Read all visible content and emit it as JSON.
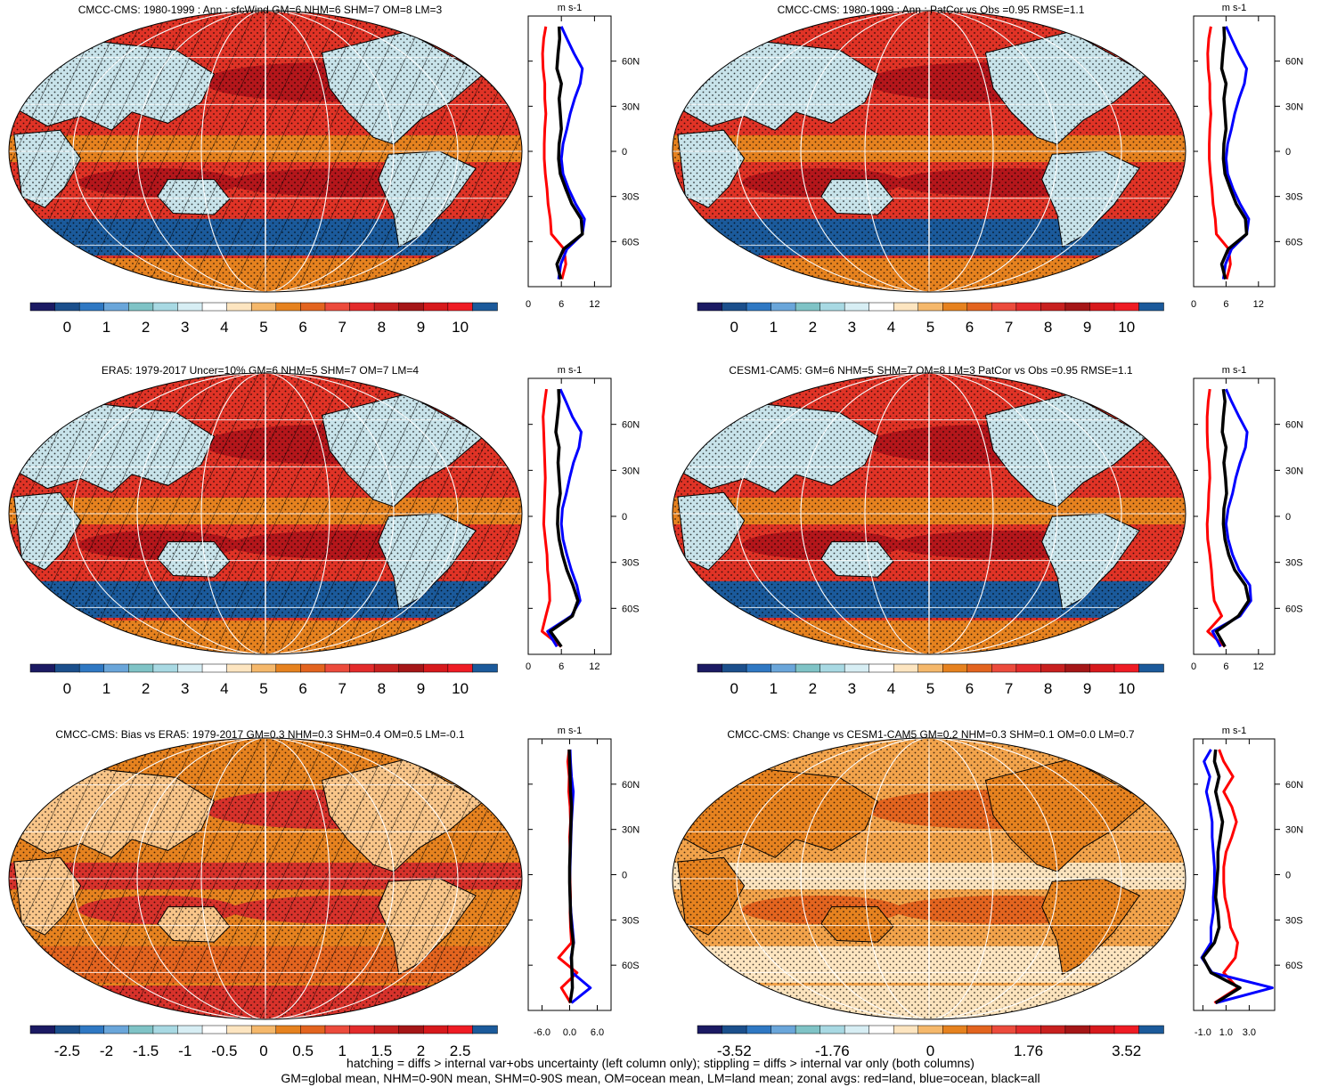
{
  "panels": [
    {
      "title": "CMCC-CMS: 1980-1999 : Ann : sfcWind GM=6 NHM=6 SHM=7 OM=8 LM=3",
      "map_kind": "climatology",
      "hatching": true,
      "stippling": true,
      "colorbar_labels": [
        "0",
        "1",
        "2",
        "3",
        "4",
        "5",
        "6",
        "7",
        "8",
        "9",
        "10"
      ],
      "zonal_xticks": [
        "0",
        "6",
        "12"
      ],
      "zonal_xrange": [
        0,
        15
      ],
      "units": "m s-1",
      "zonal": {
        "lat": [
          -85,
          -75,
          -65,
          -55,
          -45,
          -35,
          -25,
          -15,
          -5,
          5,
          15,
          25,
          35,
          45,
          55,
          65,
          75,
          83
        ],
        "land": [
          6.1,
          6.8,
          6.5,
          4.2,
          4.0,
          3.6,
          3.4,
          3.1,
          2.9,
          2.9,
          3.0,
          3.2,
          3.0,
          3.0,
          2.7,
          2.6,
          2.8,
          3.2
        ],
        "ocean": [
          5.5,
          5.9,
          7.0,
          9.8,
          10.2,
          8.6,
          7.3,
          6.3,
          6.0,
          6.3,
          7.0,
          7.6,
          8.4,
          9.4,
          9.8,
          8.3,
          7.0,
          6.0
        ],
        "all": [
          5.9,
          5.2,
          6.4,
          9.8,
          9.6,
          7.9,
          6.8,
          5.8,
          5.5,
          5.6,
          6.0,
          5.8,
          5.6,
          6.0,
          5.2,
          5.4,
          5.7,
          5.6
        ]
      }
    },
    {
      "title": "CMCC-CMS: 1980-1999 : Ann : PatCor vs Obs =0.95 RMSE=1.1",
      "map_kind": "climatology",
      "hatching": false,
      "stippling": true,
      "colorbar_labels": [
        "0",
        "1",
        "2",
        "3",
        "4",
        "5",
        "6",
        "7",
        "8",
        "9",
        "10"
      ],
      "zonal_xticks": [
        "0",
        "6",
        "12"
      ],
      "zonal_xrange": [
        0,
        15
      ],
      "units": "m s-1",
      "zonal": {
        "lat": [
          -85,
          -75,
          -65,
          -55,
          -45,
          -35,
          -25,
          -15,
          -5,
          5,
          15,
          25,
          35,
          45,
          55,
          65,
          75,
          83
        ],
        "land": [
          6.1,
          6.8,
          6.5,
          4.2,
          4.0,
          3.6,
          3.4,
          3.1,
          2.9,
          2.9,
          3.0,
          3.2,
          3.0,
          3.0,
          2.7,
          2.6,
          2.8,
          3.2
        ],
        "ocean": [
          5.5,
          5.9,
          7.0,
          9.8,
          10.2,
          8.6,
          7.3,
          6.3,
          6.0,
          6.3,
          7.0,
          7.6,
          8.4,
          9.4,
          9.8,
          8.3,
          7.0,
          6.0
        ],
        "all": [
          5.9,
          5.2,
          6.4,
          9.8,
          9.6,
          7.9,
          6.8,
          5.8,
          5.5,
          5.6,
          6.0,
          5.8,
          5.6,
          6.0,
          5.2,
          5.4,
          5.7,
          5.6
        ]
      }
    },
    {
      "title": "ERA5: 1979-2017 Uncer=10% GM=6 NHM=5 SHM=7 OM=7 LM=4",
      "map_kind": "climatology",
      "hatching": true,
      "stippling": true,
      "colorbar_labels": [
        "0",
        "1",
        "2",
        "3",
        "4",
        "5",
        "6",
        "7",
        "8",
        "9",
        "10"
      ],
      "zonal_xticks": [
        "0",
        "6",
        "12"
      ],
      "zonal_xrange": [
        0,
        15
      ],
      "units": "m s-1",
      "zonal": {
        "lat": [
          -85,
          -75,
          -65,
          -55,
          -45,
          -35,
          -25,
          -15,
          -5,
          5,
          15,
          25,
          35,
          45,
          55,
          65,
          75,
          83
        ],
        "land": [
          6.0,
          2.5,
          3.2,
          3.9,
          3.8,
          3.5,
          3.4,
          3.1,
          2.8,
          2.9,
          3.0,
          3.1,
          3.0,
          2.9,
          2.8,
          2.7,
          3.0,
          3.3
        ],
        "ocean": [
          5.2,
          3.5,
          7.8,
          9.4,
          8.8,
          7.8,
          7.0,
          6.3,
          6.0,
          6.2,
          6.9,
          7.5,
          8.2,
          9.2,
          9.6,
          8.0,
          6.8,
          5.8
        ],
        "all": [
          6.0,
          4.0,
          8.0,
          9.0,
          8.1,
          7.0,
          6.2,
          5.6,
          5.3,
          5.4,
          5.8,
          5.6,
          5.4,
          5.6,
          5.0,
          5.3,
          5.6,
          5.5
        ]
      }
    },
    {
      "title": "CESM1-CAM5: GM=6 NHM=5 SHM=7 OM=8 LM=3 PatCor vs Obs =0.95 RMSE=1.1",
      "map_kind": "climatology",
      "hatching": false,
      "stippling": true,
      "colorbar_labels": [
        "0",
        "1",
        "2",
        "3",
        "4",
        "5",
        "6",
        "7",
        "8",
        "9",
        "10"
      ],
      "zonal_xticks": [
        "0",
        "6",
        "12"
      ],
      "zonal_xrange": [
        0,
        15
      ],
      "units": "m s-1",
      "zonal": {
        "lat": [
          -85,
          -75,
          -65,
          -55,
          -45,
          -35,
          -25,
          -15,
          -5,
          5,
          15,
          25,
          35,
          45,
          55,
          65,
          75,
          83
        ],
        "land": [
          5.8,
          2.6,
          5.2,
          3.8,
          3.5,
          3.3,
          3.0,
          2.6,
          2.5,
          2.7,
          2.8,
          3.0,
          2.9,
          2.6,
          2.5,
          2.5,
          2.7,
          3.0
        ],
        "ocean": [
          5.0,
          3.5,
          8.6,
          10.6,
          10.4,
          8.4,
          7.2,
          6.4,
          6.0,
          6.4,
          7.2,
          7.8,
          8.6,
          9.6,
          9.9,
          8.4,
          7.0,
          6.0
        ],
        "all": [
          5.8,
          4.2,
          8.3,
          10.2,
          9.6,
          7.6,
          6.5,
          5.8,
          5.5,
          5.6,
          6.1,
          5.9,
          5.6,
          6.0,
          5.3,
          5.5,
          5.8,
          5.5
        ]
      }
    },
    {
      "title": "CMCC-CMS: Bias vs ERA5: 1979-2017 GM=0.3 NHM=0.3 SHM=0.4 OM=0.5 LM=-0.1",
      "map_kind": "bias",
      "hatching": true,
      "stippling": true,
      "colorbar_labels": [
        "-2.5",
        "-2",
        "-1.5",
        "-1",
        "-0.5",
        "0",
        "0.5",
        "1",
        "1.5",
        "2",
        "2.5"
      ],
      "zonal_xticks": [
        "-6.0",
        "0.0",
        "6.0"
      ],
      "zonal_xrange": [
        -9,
        9
      ],
      "units": "m s-1",
      "zonal": {
        "lat": [
          -85,
          -75,
          -65,
          -55,
          -45,
          -35,
          -25,
          -15,
          -5,
          5,
          15,
          25,
          35,
          45,
          55,
          65,
          75,
          83
        ],
        "land": [
          0.2,
          -1.8,
          1.6,
          -2.4,
          0.4,
          0.2,
          0.1,
          0.2,
          0.1,
          0.0,
          0.1,
          0.0,
          0.2,
          0.1,
          -0.2,
          -0.1,
          -0.4,
          -0.1
        ],
        "ocean": [
          0.4,
          4.5,
          0.6,
          0.3,
          0.9,
          0.6,
          0.3,
          0.1,
          0.0,
          0.1,
          0.2,
          0.3,
          0.4,
          0.6,
          0.8,
          0.4,
          0.2,
          0.1
        ],
        "all": [
          0.1,
          0.6,
          0.5,
          0.4,
          0.8,
          0.4,
          0.2,
          0.1,
          0.0,
          0.0,
          0.1,
          0.2,
          0.3,
          0.4,
          0.2,
          0.1,
          0.0,
          -0.1
        ]
      }
    },
    {
      "title": "CMCC-CMS: Change vs CESM1-CAM5 GM=0.2 NHM=0.3 SHM=0.1 OM=0.0 LM=0.7",
      "map_kind": "change",
      "hatching": false,
      "stippling": true,
      "colorbar_labels": [
        "-3.52",
        "-1.76",
        "0",
        "1.76",
        "3.52"
      ],
      "zonal_xticks": [
        "-1.0",
        "1.0",
        "3.0"
      ],
      "zonal_xrange": [
        -1.8,
        5.2
      ],
      "units": "m s-1",
      "zonal": {
        "lat": [
          -85,
          -75,
          -65,
          -55,
          -45,
          -35,
          -25,
          -15,
          -5,
          5,
          15,
          25,
          35,
          45,
          55,
          65,
          75,
          83
        ],
        "land": [
          0.0,
          2.0,
          0.8,
          1.8,
          2.0,
          1.4,
          1.2,
          0.9,
          0.8,
          0.8,
          1.0,
          1.5,
          1.9,
          1.5,
          0.8,
          1.6,
          0.8,
          0.4
        ],
        "ocean": [
          0.1,
          5.0,
          -0.2,
          -1.1,
          -0.3,
          -0.3,
          -0.1,
          -0.1,
          0.0,
          0.0,
          -0.1,
          -0.2,
          -0.2,
          -0.4,
          -0.7,
          -0.4,
          -0.9,
          -0.3
        ],
        "all": [
          0.1,
          2.2,
          -0.3,
          -1.0,
          0.0,
          0.4,
          0.3,
          0.1,
          0.2,
          0.3,
          0.3,
          0.5,
          0.7,
          0.4,
          0.1,
          0.4,
          0.0,
          0.1
        ]
      }
    }
  ],
  "lat_ticks": [
    "60N",
    "30N",
    "0",
    "30S",
    "60S"
  ],
  "footer": {
    "line1": "hatching = diffs > internal var+obs uncertainty (left column only); stippling = diffs > internal var only (both columns)",
    "line2": "GM=global mean, NHM=0-90N mean, SHM=0-90S mean, OM=ocean mean, LM=land mean; zonal avgs: red=land, blue=ocean, black=all"
  },
  "colors": {
    "wind_scale": [
      "#1b1a63",
      "#1b4f8c",
      "#2f78c3",
      "#6aa6da",
      "#7fc3c6",
      "#a8d9e3",
      "#d7eef4",
      "#ffffff",
      "#fde5c0",
      "#f5b86b",
      "#e6821f",
      "#e3641f",
      "#ec4b3c",
      "#e32b2b",
      "#c8201f",
      "#a51617",
      "#d7191c",
      "#ef1c24",
      "#1b5a9b"
    ],
    "diff_scale": [
      "#1b1a63",
      "#1b4f8c",
      "#2f78c3",
      "#6aa6da",
      "#7fc3c6",
      "#a8d9e3",
      "#d7eef4",
      "#ffffff",
      "#fde5c0",
      "#f5b86b",
      "#e6821f",
      "#e3641f",
      "#ec4b3c",
      "#e32b2b",
      "#c8201f",
      "#a51617",
      "#d7191c",
      "#ef1c24",
      "#1b5a9b"
    ],
    "land_line": "#ff0000",
    "ocean_line": "#0000ff",
    "all_line": "#000000"
  }
}
